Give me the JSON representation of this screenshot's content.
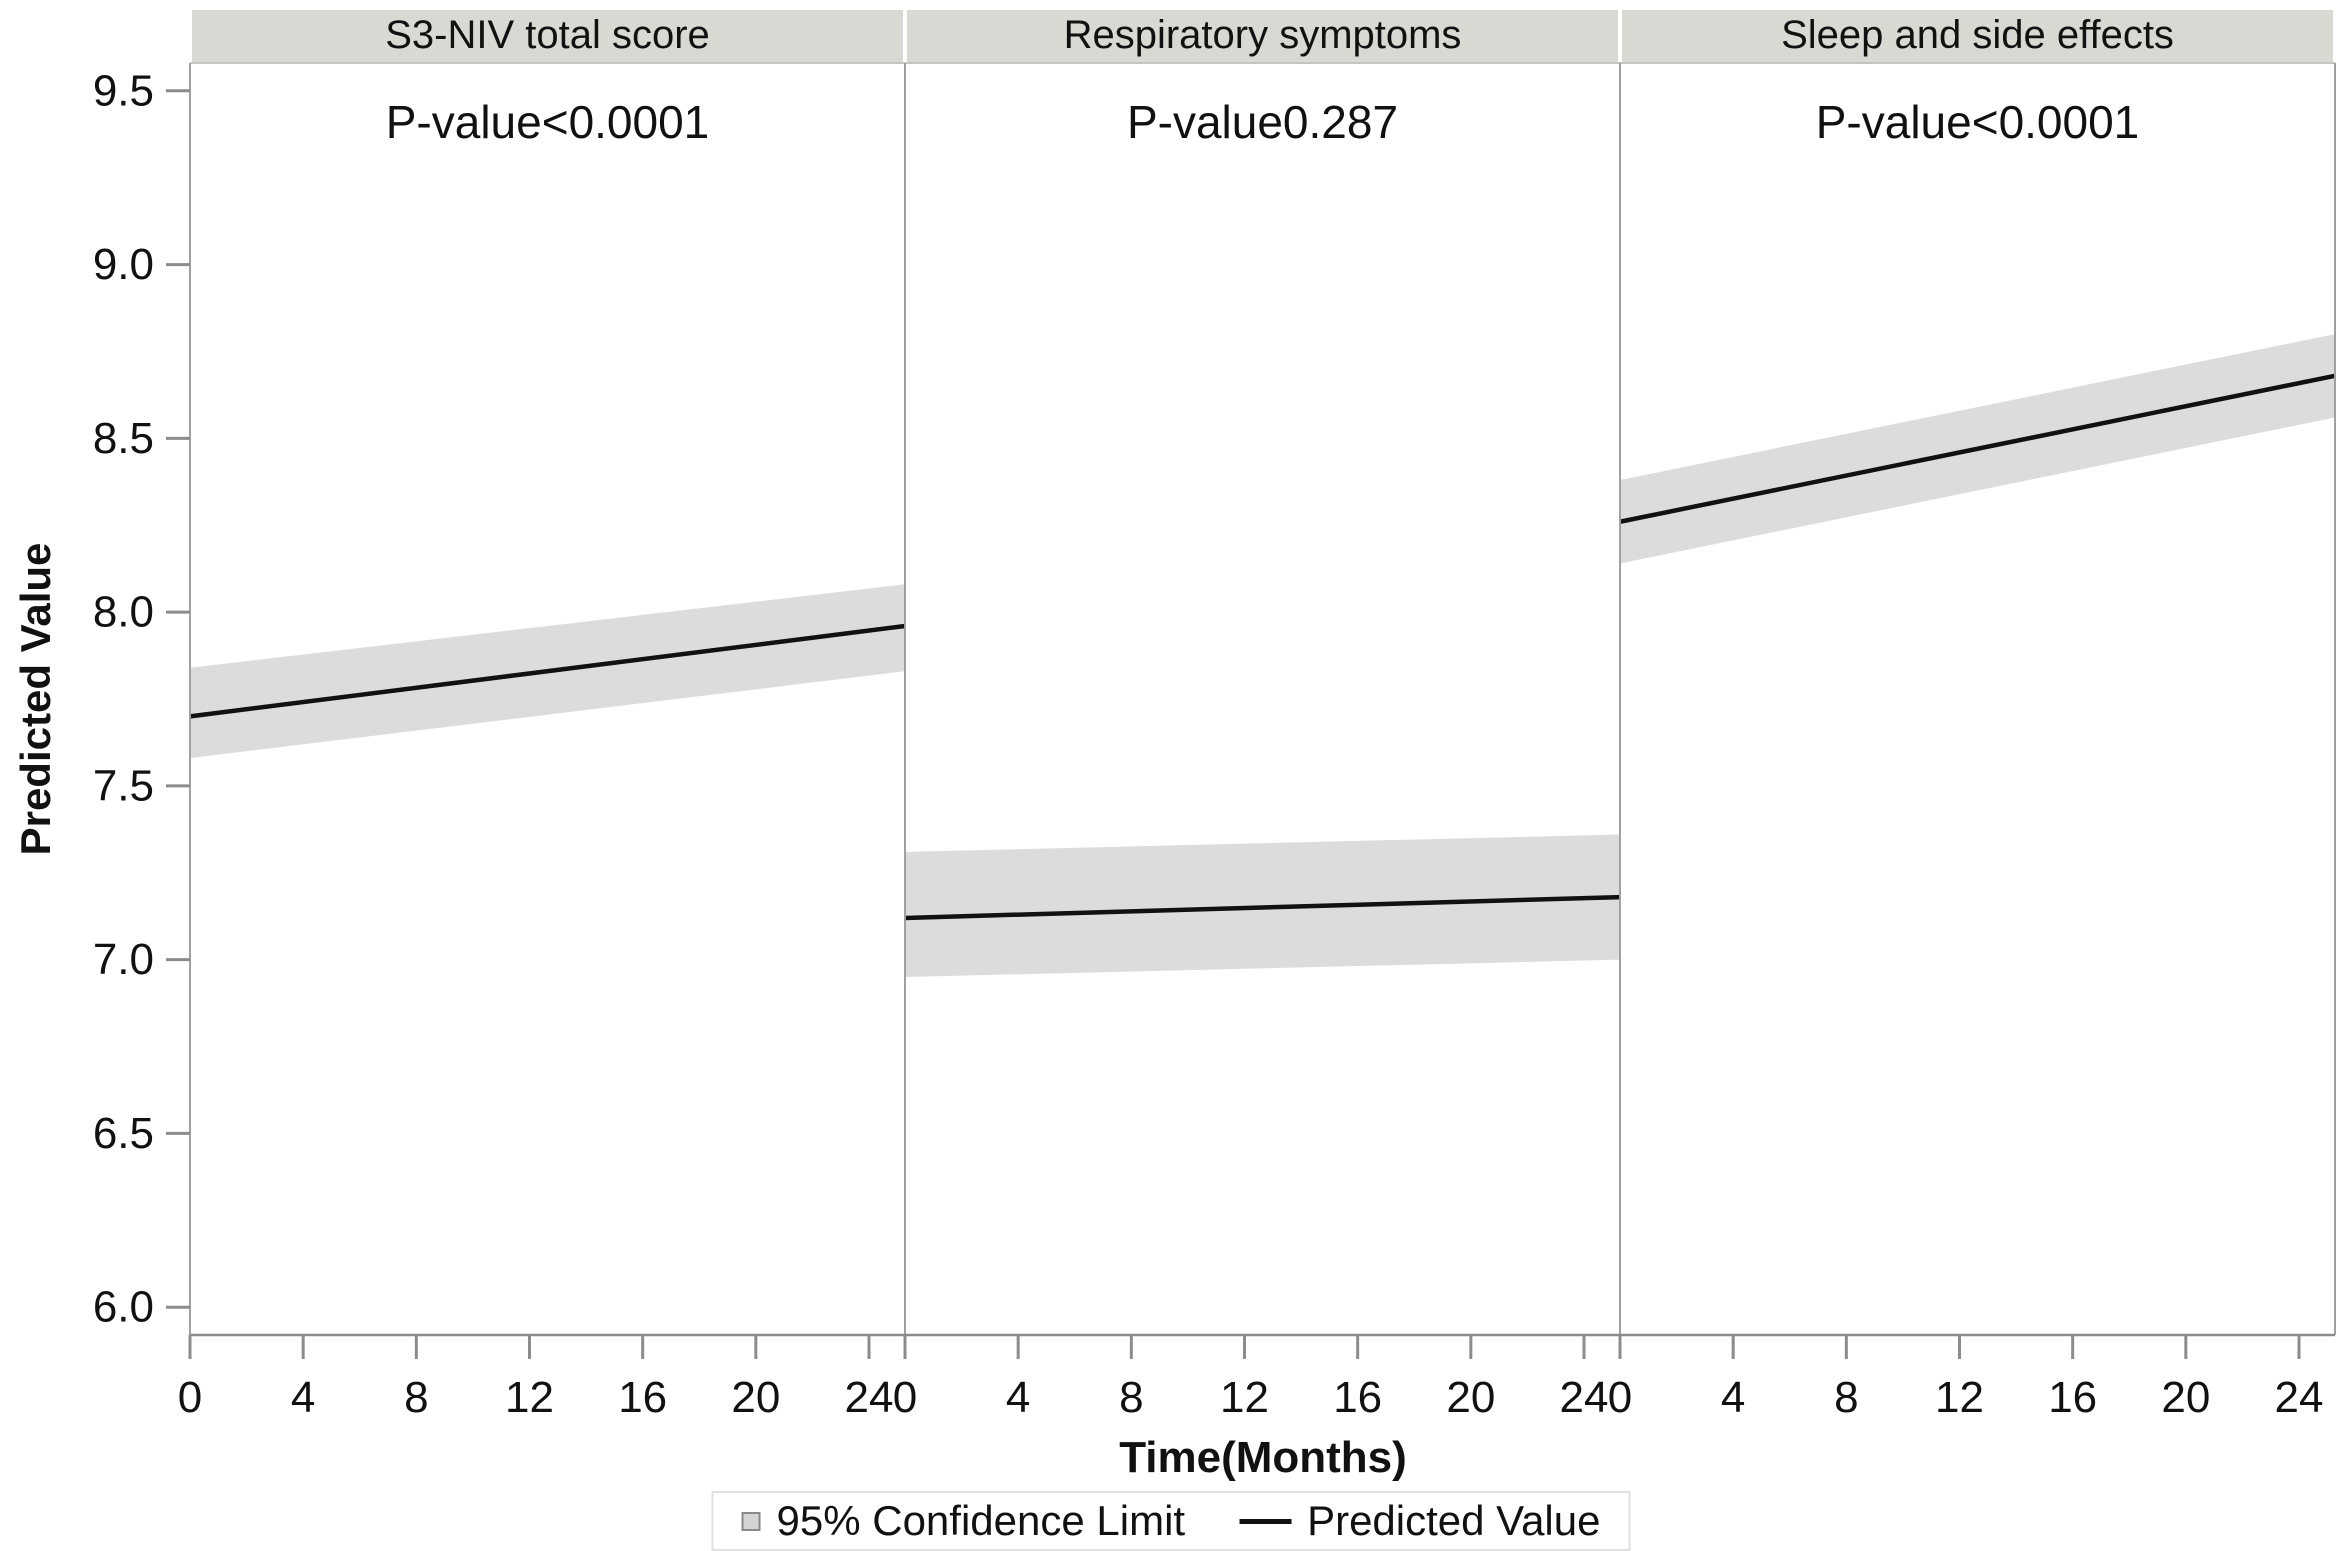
{
  "figure": {
    "type_note": "three-panel longitudinal model plot with 95% confidence bands",
    "background": "#ffffff"
  },
  "y_axis": {
    "title": "Predicted Value",
    "tick_labels": [
      "9.5",
      "9.0",
      "8.5",
      "8.0",
      "7.5",
      "7.0",
      "6.5",
      "6.0"
    ]
  },
  "x_axis": {
    "title": "Time(Months)",
    "tick_labels": [
      "0",
      "4",
      "8",
      "12",
      "16",
      "20",
      "24"
    ],
    "note": "same tick set repeated under each of the three panels"
  },
  "legend": {
    "position": "bottom-center",
    "items": [
      {
        "marker": "ci-square",
        "label": "95% Confidence Limit"
      },
      {
        "marker": "line",
        "label": "Predicted Value"
      }
    ]
  },
  "colors": {
    "header_bg": "#d9d9d4",
    "band": "#dcdcdc",
    "line": "#111111",
    "panel_border": "#a0a0a0",
    "plot_top_border": "#c4c4c4",
    "axis_line": "#8c8c8c",
    "tick": "#8c8c8c",
    "text": "#111111",
    "legend_border": "#e0e0e0",
    "legend_marker_fill": "#d4d4d4",
    "legend_marker_border": "#8a8a8a"
  },
  "chart_data": {
    "type": "line",
    "xlabel": "Time(Months)",
    "ylabel": "Predicted Value",
    "x_ticks": [
      0,
      4,
      8,
      12,
      16,
      20,
      24
    ],
    "y_ticks": [
      6.0,
      6.5,
      7.0,
      7.5,
      8.0,
      8.5,
      9.0,
      9.5
    ],
    "ylim": [
      5.92,
      9.58
    ],
    "xlim_per_panel": [
      0,
      24
    ],
    "grid": false,
    "legend_position": "bottom-center",
    "panels": [
      {
        "title": "S3-NIV total score",
        "p_value_label": "P-value<0.0001",
        "x": [
          0,
          24
        ],
        "predicted": [
          7.7,
          7.96
        ],
        "ci_lower": [
          7.58,
          7.83
        ],
        "ci_upper": [
          7.84,
          8.08
        ]
      },
      {
        "title": "Respiratory symptoms",
        "p_value_label": "P-value0.287",
        "x": [
          0,
          24
        ],
        "predicted": [
          7.12,
          7.18
        ],
        "ci_lower": [
          6.95,
          7.0
        ],
        "ci_upper": [
          7.31,
          7.36
        ]
      },
      {
        "title": "Sleep and side effects",
        "p_value_label": "P-value<0.0001",
        "x": [
          0,
          24
        ],
        "predicted": [
          8.26,
          8.68
        ],
        "ci_lower": [
          8.14,
          8.56
        ],
        "ci_upper": [
          8.38,
          8.8
        ]
      }
    ]
  }
}
